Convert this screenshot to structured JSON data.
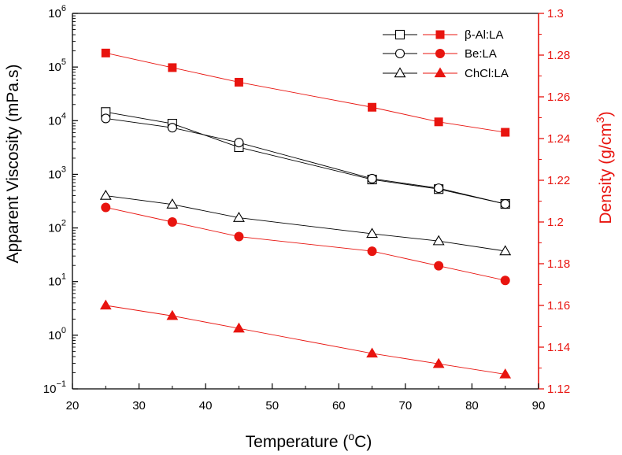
{
  "chart_data": {
    "type": "line",
    "xlabel": "Temperature (°C)",
    "xlabel_main": "Temperature (",
    "xlabel_sup": "o",
    "xlabel_end": "C)",
    "ylabel_left": "Apparent Viscosity (mPa.s)",
    "ylabel_right_main": "Density (g/cm",
    "ylabel_right_sup": "3",
    "ylabel_right_end": ")",
    "xlim": [
      20,
      90
    ],
    "ylim_left": [
      0.1,
      1000000
    ],
    "ylim_right": [
      1.12,
      1.3
    ],
    "left_scale": "log",
    "grid": false,
    "legend_position": "top-right",
    "x_ticks": [
      "20",
      "30",
      "40",
      "50",
      "60",
      "70",
      "80",
      "90"
    ],
    "y_left_ticks": [
      {
        "base": "10",
        "exp": "−1"
      },
      {
        "base": "10",
        "exp": "0"
      },
      {
        "base": "10",
        "exp": "1"
      },
      {
        "base": "10",
        "exp": "2"
      },
      {
        "base": "10",
        "exp": "3"
      },
      {
        "base": "10",
        "exp": "4"
      },
      {
        "base": "10",
        "exp": "5"
      },
      {
        "base": "10",
        "exp": "6"
      }
    ],
    "y_right_ticks": [
      "1.12",
      "1.14",
      "1.16",
      "1.18",
      "1.2",
      "1.22",
      "1.24",
      "1.26",
      "1.28",
      "1.3"
    ],
    "colors": {
      "viscosity": "#000000",
      "density": "#e8140f",
      "right_axis": "#e8140f"
    },
    "x": [
      25,
      35,
      45,
      65,
      75,
      85
    ],
    "series": [
      {
        "name": "β-Al:LA",
        "marker": "square",
        "axis": "left",
        "filled": false,
        "values": [
          14500,
          8800,
          3200,
          800,
          530,
          280
        ]
      },
      {
        "name": "Be:LA",
        "marker": "circle",
        "axis": "left",
        "filled": false,
        "values": [
          11000,
          7400,
          3900,
          830,
          550,
          280
        ]
      },
      {
        "name": "ChCl:LA",
        "marker": "triangle",
        "axis": "left",
        "filled": false,
        "values": [
          400,
          275,
          155,
          78,
          57,
          37
        ]
      },
      {
        "name": "β-Al:LA",
        "marker": "square",
        "axis": "right",
        "filled": true,
        "values": [
          1.281,
          1.274,
          1.267,
          1.255,
          1.248,
          1.243
        ]
      },
      {
        "name": "Be:LA",
        "marker": "circle",
        "axis": "right",
        "filled": true,
        "values": [
          1.207,
          1.2,
          1.193,
          1.186,
          1.179,
          1.172
        ]
      },
      {
        "name": "ChCl:LA",
        "marker": "triangle",
        "axis": "right",
        "filled": true,
        "values": [
          1.16,
          1.155,
          1.149,
          1.137,
          1.132,
          1.127
        ]
      }
    ],
    "legend": [
      {
        "label": "β-Al:LA",
        "marker": "square"
      },
      {
        "label": "Be:LA",
        "marker": "circle"
      },
      {
        "label": "ChCl:LA",
        "marker": "triangle"
      }
    ]
  }
}
